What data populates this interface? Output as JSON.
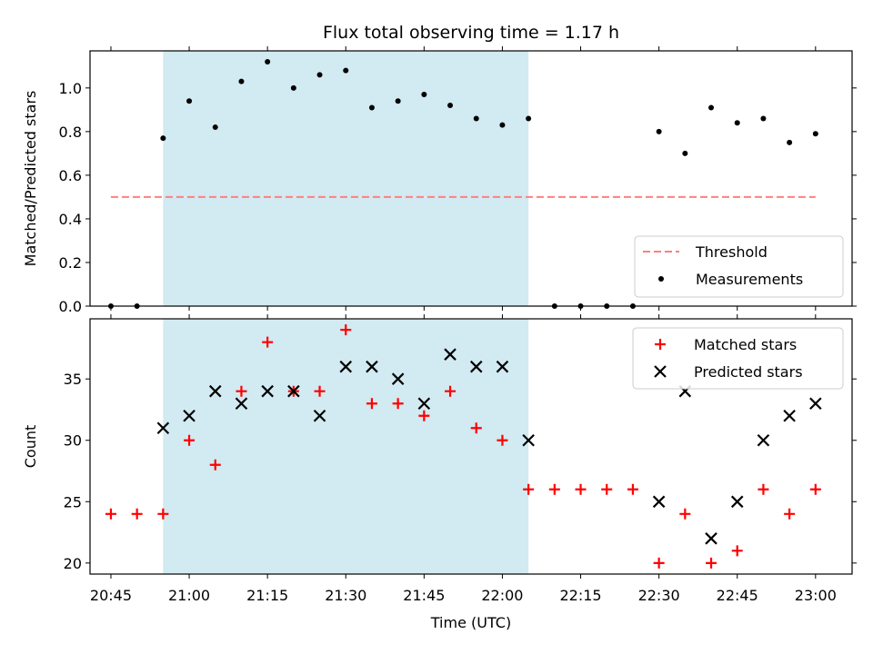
{
  "title": "Flux total observing time = 1.17 h",
  "colors": {
    "shade": "#add8e6",
    "threshold": "#ff7f7f",
    "measurement": "#000000",
    "matched": "#ff0000",
    "predicted": "#000000"
  },
  "chart_data": [
    {
      "type": "scatter",
      "panel": "top",
      "ylabel": "Matched/Predicted stars",
      "xlim": [
        "20:41",
        "23:07"
      ],
      "ylim": [
        0,
        1.17
      ],
      "yticks": [
        0.0,
        0.2,
        0.4,
        0.6,
        0.8,
        1.0
      ],
      "ytick_labels": [
        "0.0",
        "0.2",
        "0.4",
        "0.6",
        "0.8",
        "1.0"
      ],
      "shaded_span": [
        "20:55",
        "22:05"
      ],
      "legend_position": "lower right",
      "threshold": {
        "name": "Threshold",
        "y": 0.5,
        "x_range": [
          "20:45",
          "23:00"
        ],
        "style": "dashed"
      },
      "series": [
        {
          "name": "Measurements",
          "x": [
            "20:45",
            "20:50",
            "20:55",
            "21:00",
            "21:05",
            "21:10",
            "21:15",
            "21:20",
            "21:25",
            "21:30",
            "21:35",
            "21:40",
            "21:45",
            "21:50",
            "21:55",
            "22:00",
            "22:05",
            "22:10",
            "22:15",
            "22:20",
            "22:25",
            "22:30",
            "22:35",
            "22:40",
            "22:45",
            "22:50",
            "22:55",
            "23:00"
          ],
          "y": [
            0.0,
            0.0,
            0.77,
            0.94,
            0.82,
            1.03,
            1.12,
            1.0,
            1.06,
            1.08,
            0.91,
            0.94,
            0.97,
            0.92,
            0.86,
            0.83,
            0.86,
            0.0,
            0.0,
            0.0,
            0.0,
            0.8,
            0.7,
            0.91,
            0.84,
            0.86,
            0.75,
            0.79
          ]
        }
      ]
    },
    {
      "type": "scatter",
      "panel": "bottom",
      "xlabel": "Time (UTC)",
      "ylabel": "Count",
      "xlim": [
        "20:41",
        "23:07"
      ],
      "ylim": [
        19.1,
        39.9
      ],
      "yticks": [
        20,
        25,
        30,
        35
      ],
      "ytick_labels": [
        "20",
        "25",
        "30",
        "35"
      ],
      "xticks": [
        "20:45",
        "21:00",
        "21:15",
        "21:30",
        "21:45",
        "22:00",
        "22:15",
        "22:30",
        "22:45",
        "23:00"
      ],
      "xtick_labels": [
        "20:45",
        "21:00",
        "21:15",
        "21:30",
        "21:45",
        "22:00",
        "22:15",
        "22:30",
        "22:45",
        "23:00"
      ],
      "shaded_span": [
        "20:55",
        "22:05"
      ],
      "legend_position": "upper right",
      "series": [
        {
          "name": "Matched stars",
          "marker": "+",
          "x": [
            "20:45",
            "20:50",
            "20:55",
            "21:00",
            "21:05",
            "21:10",
            "21:15",
            "21:20",
            "21:25",
            "21:30",
            "21:35",
            "21:40",
            "21:45",
            "21:50",
            "21:55",
            "22:00",
            "22:05",
            "22:10",
            "22:15",
            "22:20",
            "22:25",
            "22:30",
            "22:35",
            "22:40",
            "22:45",
            "22:50",
            "22:55",
            "23:00"
          ],
          "y": [
            24,
            24,
            24,
            30,
            28,
            34,
            38,
            34,
            34,
            39,
            33,
            33,
            32,
            34,
            31,
            30,
            26,
            26,
            26,
            26,
            26,
            20,
            24,
            20,
            21,
            26,
            24,
            26
          ]
        },
        {
          "name": "Predicted stars",
          "marker": "x",
          "x": [
            "20:55",
            "21:00",
            "21:05",
            "21:10",
            "21:15",
            "21:20",
            "21:25",
            "21:30",
            "21:35",
            "21:40",
            "21:45",
            "21:50",
            "21:55",
            "22:00",
            "22:05",
            "22:30",
            "22:35",
            "22:40",
            "22:45",
            "22:50",
            "22:55",
            "23:00"
          ],
          "y": [
            31,
            32,
            34,
            33,
            34,
            34,
            32,
            36,
            36,
            35,
            33,
            37,
            36,
            36,
            30,
            25,
            34,
            22,
            25,
            30,
            32,
            33
          ]
        }
      ]
    }
  ]
}
